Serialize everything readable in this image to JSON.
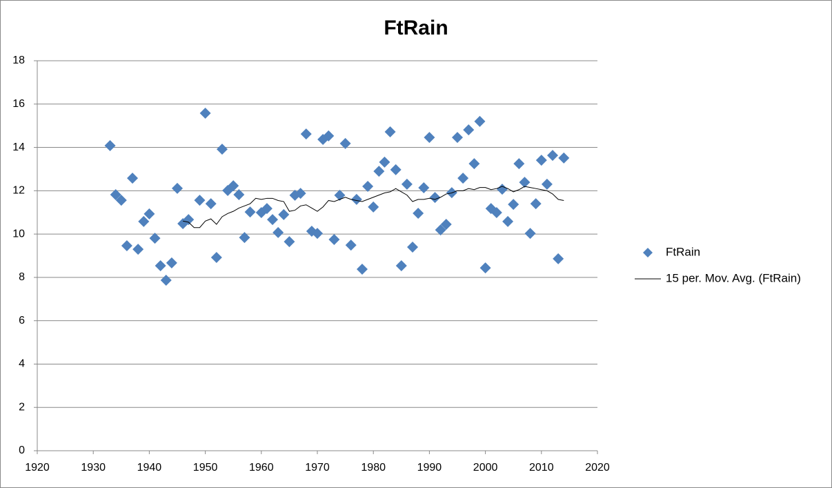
{
  "chart_data": {
    "type": "scatter",
    "title": "FtRain",
    "xlim": [
      1920,
      2020
    ],
    "xticks": [
      1920,
      1930,
      1940,
      1950,
      1960,
      1970,
      1980,
      1990,
      2000,
      2010,
      2020
    ],
    "ylim": [
      0,
      18
    ],
    "yticks": [
      0,
      2,
      4,
      6,
      8,
      10,
      12,
      14,
      16,
      18
    ],
    "grid": true,
    "legend": "right",
    "series": [
      {
        "name": "FtRain",
        "color": "#4f81bd",
        "mark": "diamond",
        "x": [
          1933,
          1934,
          1935,
          1936,
          1937,
          1938,
          1939,
          1940,
          1941,
          1942,
          1943,
          1944,
          1945,
          1946,
          1947,
          1949,
          1950,
          1951,
          1952,
          1953,
          1954,
          1955,
          1956,
          1957,
          1958,
          1960,
          1961,
          1962,
          1963,
          1964,
          1965,
          1966,
          1967,
          1968,
          1969,
          1970,
          1971,
          1972,
          1973,
          1974,
          1975,
          1976,
          1977,
          1978,
          1979,
          1980,
          1981,
          1982,
          1983,
          1984,
          1985,
          1986,
          1987,
          1988,
          1989,
          1990,
          1991,
          1992,
          1993,
          1994,
          1995,
          1996,
          1997,
          1998,
          1999,
          2000,
          2001,
          2002,
          2003,
          2004,
          2005,
          2006,
          2007,
          2008,
          2009,
          2010,
          2011,
          2012,
          2013,
          2014
        ],
        "values": [
          14.08,
          11.82,
          11.56,
          9.46,
          12.58,
          9.3,
          10.58,
          10.93,
          9.81,
          8.54,
          7.87,
          8.67,
          12.11,
          10.48,
          10.67,
          11.56,
          15.58,
          11.4,
          8.92,
          13.92,
          12.01,
          12.23,
          11.82,
          9.84,
          11.02,
          10.99,
          11.18,
          10.67,
          10.07,
          10.9,
          9.65,
          11.79,
          11.88,
          14.62,
          10.13,
          10.03,
          14.37,
          14.53,
          9.75,
          11.79,
          14.18,
          9.49,
          11.6,
          8.38,
          12.2,
          11.25,
          12.9,
          13.32,
          14.72,
          12.97,
          8.54,
          12.3,
          9.4,
          10.96,
          12.14,
          14.46,
          11.69,
          10.19,
          10.45,
          11.91,
          14.46,
          12.58,
          14.81,
          13.25,
          15.2,
          8.44,
          11.18,
          10.99,
          12.07,
          10.58,
          11.37,
          13.25,
          12.39,
          10.03,
          11.4,
          13.41,
          12.3,
          13.63,
          8.86,
          13.51
        ]
      },
      {
        "name": "15 per. Mov. Avg. (FtRain)",
        "color": "#000000",
        "mark": "line",
        "x": [
          1946,
          1947,
          1948,
          1949,
          1950,
          1951,
          1952,
          1953,
          1954,
          1955,
          1956,
          1957,
          1958,
          1959,
          1960,
          1961,
          1962,
          1963,
          1964,
          1965,
          1966,
          1967,
          1968,
          1969,
          1970,
          1971,
          1972,
          1973,
          1974,
          1975,
          1976,
          1977,
          1978,
          1979,
          1980,
          1981,
          1982,
          1983,
          1984,
          1985,
          1986,
          1987,
          1988,
          1989,
          1990,
          1991,
          1992,
          1993,
          1994,
          1995,
          1996,
          1997,
          1998,
          1999,
          2000,
          2001,
          2002,
          2003,
          2004,
          2005,
          2006,
          2007,
          2008,
          2009,
          2010,
          2011,
          2012,
          2013,
          2014
        ],
        "values": [
          10.6,
          10.55,
          10.3,
          10.3,
          10.6,
          10.7,
          10.45,
          10.8,
          10.95,
          11.05,
          11.2,
          11.3,
          11.4,
          11.65,
          11.6,
          11.65,
          11.65,
          11.55,
          11.5,
          11.05,
          11.1,
          11.3,
          11.35,
          11.2,
          11.05,
          11.25,
          11.55,
          11.5,
          11.6,
          11.7,
          11.6,
          11.55,
          11.5,
          11.6,
          11.7,
          11.8,
          11.9,
          11.95,
          12.1,
          11.95,
          11.8,
          11.5,
          11.6,
          11.6,
          11.65,
          11.6,
          11.7,
          11.85,
          11.9,
          12.0,
          12.0,
          12.1,
          12.05,
          12.15,
          12.15,
          12.05,
          12.1,
          12.2,
          12.1,
          11.95,
          12.05,
          12.2,
          12.15,
          12.1,
          12.05,
          12.0,
          11.85,
          11.6,
          11.55
        ]
      }
    ]
  }
}
